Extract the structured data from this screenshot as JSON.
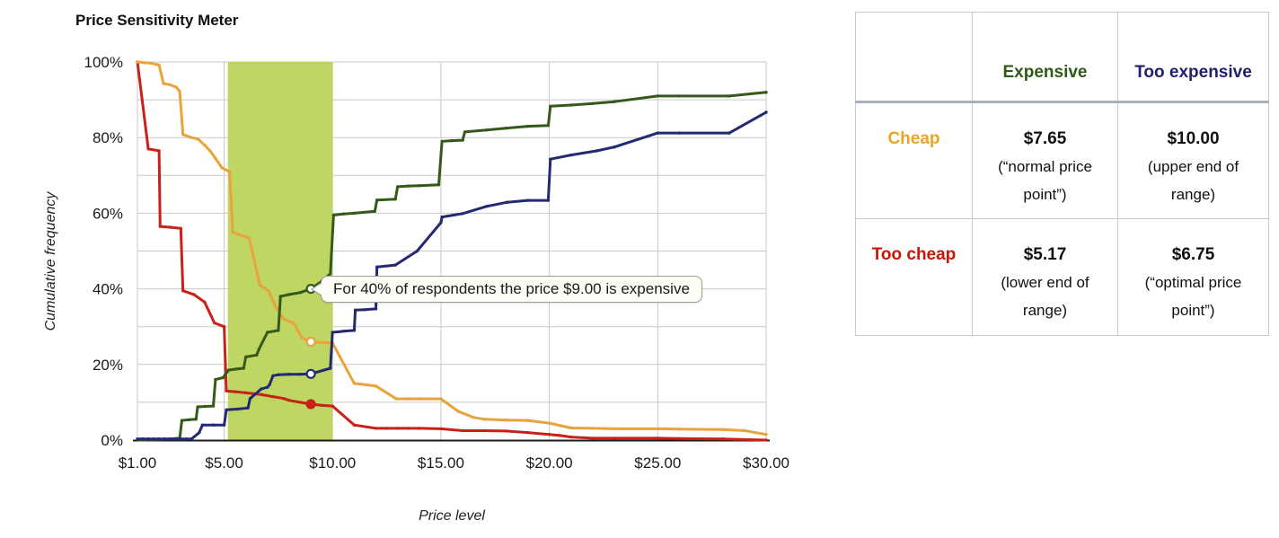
{
  "chart_data": {
    "type": "line",
    "title": "Price Sensitivity Meter",
    "xlabel": "Price level",
    "ylabel": "Cumulative frequency",
    "xlim": [
      1,
      30
    ],
    "ylim": [
      0,
      100
    ],
    "grid": {
      "horizontal_step_pct": 10,
      "vertical_at_ticks": true,
      "color": "#c9c9c9"
    },
    "x_ticks": [
      {
        "value": 1,
        "label": "$1.00"
      },
      {
        "value": 5,
        "label": "$5.00"
      },
      {
        "value": 10,
        "label": "$10.00"
      },
      {
        "value": 15,
        "label": "$15.00"
      },
      {
        "value": 20,
        "label": "$20.00"
      },
      {
        "value": 25,
        "label": "$25.00"
      },
      {
        "value": 30,
        "label": "$30.00"
      }
    ],
    "y_ticks": [
      {
        "value": 100,
        "label": "100%"
      },
      {
        "value": 80,
        "label": "80%"
      },
      {
        "value": 60,
        "label": "60%"
      },
      {
        "value": 40,
        "label": "40%"
      },
      {
        "value": 20,
        "label": "20%"
      },
      {
        "value": 0,
        "label": "0%"
      }
    ],
    "highlight_band": {
      "from": 5.17,
      "to": 10.0,
      "color": "#bed763"
    },
    "annotation": {
      "text": "For 40% of respondents the price $9.00 is expensive",
      "price": 9.0,
      "value_pct": 40,
      "series": "Expensive"
    },
    "series": [
      {
        "name": "Too cheap",
        "color": "#c9211a",
        "highlight": {
          "price": 9,
          "value": 9.5,
          "open": false
        },
        "points": [
          [
            1,
            100
          ],
          [
            1.5,
            77
          ],
          [
            2,
            76.5
          ],
          [
            2.05,
            56.5
          ],
          [
            2.5,
            56.3
          ],
          [
            3,
            56
          ],
          [
            3.1,
            39.5
          ],
          [
            3.6,
            38.5
          ],
          [
            4.1,
            36.5
          ],
          [
            4.55,
            31
          ],
          [
            5,
            30
          ],
          [
            5.1,
            13
          ],
          [
            5.5,
            12.8
          ],
          [
            6,
            12.5
          ],
          [
            6.5,
            12.2
          ],
          [
            6.75,
            12
          ],
          [
            7.25,
            11.5
          ],
          [
            7.75,
            11
          ],
          [
            8,
            10.5
          ],
          [
            8.5,
            10
          ],
          [
            9,
            9.5
          ],
          [
            9.5,
            9.2
          ],
          [
            10,
            9
          ],
          [
            11,
            4
          ],
          [
            12,
            3.1
          ],
          [
            12.5,
            3.1
          ],
          [
            13,
            3.1
          ],
          [
            13.5,
            3.1
          ],
          [
            14,
            3.1
          ],
          [
            15,
            3
          ],
          [
            16,
            2.5
          ],
          [
            17,
            2.5
          ],
          [
            18,
            2.4
          ],
          [
            19,
            2
          ],
          [
            20,
            1.5
          ],
          [
            20.5,
            1.2
          ],
          [
            21,
            0.8
          ],
          [
            22,
            0.5
          ],
          [
            23,
            0.5
          ],
          [
            25,
            0.5
          ],
          [
            26,
            0.4
          ],
          [
            28,
            0.3
          ],
          [
            30,
            0
          ]
        ]
      },
      {
        "name": "Cheap",
        "color": "#e8a33d",
        "highlight": {
          "price": 9,
          "value": 26,
          "open": true
        },
        "points": [
          [
            1,
            100
          ],
          [
            1.3,
            99.8
          ],
          [
            1.6,
            99.7
          ],
          [
            2,
            99.2
          ],
          [
            2.2,
            94.3
          ],
          [
            2.5,
            94
          ],
          [
            2.8,
            93.3
          ],
          [
            2.95,
            92.2
          ],
          [
            3.1,
            80.8
          ],
          [
            3.5,
            80
          ],
          [
            3.8,
            79.6
          ],
          [
            4.1,
            78
          ],
          [
            4.35,
            76.5
          ],
          [
            4.6,
            74.5
          ],
          [
            4.9,
            72
          ],
          [
            5.25,
            71
          ],
          [
            5.4,
            55
          ],
          [
            5.75,
            54.2
          ],
          [
            6.15,
            53.5
          ],
          [
            6.65,
            41
          ],
          [
            7.05,
            39.5
          ],
          [
            7.4,
            35
          ],
          [
            7.75,
            32
          ],
          [
            8.2,
            31
          ],
          [
            8.6,
            27
          ],
          [
            9,
            26
          ],
          [
            9.5,
            25.8
          ],
          [
            10,
            25.7
          ],
          [
            11,
            15
          ],
          [
            12,
            14.3
          ],
          [
            12.95,
            10.9
          ],
          [
            13.5,
            10.9
          ],
          [
            14,
            10.9
          ],
          [
            15,
            10.9
          ],
          [
            15.8,
            7.6
          ],
          [
            16.5,
            6
          ],
          [
            17,
            5.5
          ],
          [
            18,
            5.3
          ],
          [
            19,
            5.2
          ],
          [
            20,
            4.5
          ],
          [
            21,
            3.2
          ],
          [
            22,
            3.1
          ],
          [
            23,
            3
          ],
          [
            25,
            3
          ],
          [
            26,
            2.9
          ],
          [
            28,
            2.8
          ],
          [
            29,
            2.5
          ],
          [
            30,
            1.5
          ]
        ]
      },
      {
        "name": "Expensive",
        "color": "#35591b",
        "highlight": {
          "price": 9,
          "value": 40,
          "open": true
        },
        "points": [
          [
            1,
            0
          ],
          [
            1.5,
            0
          ],
          [
            2,
            0.2
          ],
          [
            2.5,
            0.3
          ],
          [
            2.95,
            0.5
          ],
          [
            3.05,
            5.2
          ],
          [
            3.4,
            5.4
          ],
          [
            3.7,
            5.5
          ],
          [
            3.78,
            8.8
          ],
          [
            4.1,
            8.9
          ],
          [
            4.5,
            9
          ],
          [
            4.6,
            16
          ],
          [
            4.95,
            16.5
          ],
          [
            5.2,
            18.5
          ],
          [
            5.55,
            18.8
          ],
          [
            5.9,
            19
          ],
          [
            6,
            22
          ],
          [
            6.5,
            22.5
          ],
          [
            6.6,
            24
          ],
          [
            7,
            28.5
          ],
          [
            7.5,
            29
          ],
          [
            7.6,
            38
          ],
          [
            8,
            38.5
          ],
          [
            8.5,
            39
          ],
          [
            9,
            40
          ],
          [
            9.5,
            42
          ],
          [
            9.9,
            44
          ],
          [
            10.05,
            59.5
          ],
          [
            10.5,
            59.8
          ],
          [
            11,
            60
          ],
          [
            11.95,
            60.5
          ],
          [
            12.05,
            63.5
          ],
          [
            12.9,
            63.7
          ],
          [
            13,
            67
          ],
          [
            13.5,
            67.2
          ],
          [
            14,
            67.3
          ],
          [
            14.9,
            67.5
          ],
          [
            15.05,
            79
          ],
          [
            15.5,
            79.2
          ],
          [
            16,
            79.3
          ],
          [
            16.1,
            81.5
          ],
          [
            17.1,
            82
          ],
          [
            18,
            82.5
          ],
          [
            19,
            83
          ],
          [
            19.95,
            83.2
          ],
          [
            20.05,
            88.3
          ],
          [
            21,
            88.6
          ],
          [
            22,
            89
          ],
          [
            23,
            89.5
          ],
          [
            25,
            91
          ],
          [
            26,
            91
          ],
          [
            28.3,
            91
          ],
          [
            30,
            92
          ]
        ]
      },
      {
        "name": "Too expensive",
        "color": "#232a72",
        "highlight": {
          "price": 9,
          "value": 17.5,
          "open": true
        },
        "points": [
          [
            1,
            0.3
          ],
          [
            1.25,
            0.3
          ],
          [
            1.5,
            0.3
          ],
          [
            1.75,
            0.3
          ],
          [
            2,
            0.3
          ],
          [
            2.25,
            0.3
          ],
          [
            2.5,
            0.3
          ],
          [
            2.75,
            0.3
          ],
          [
            3,
            0.3
          ],
          [
            3.25,
            0.3
          ],
          [
            3.5,
            0.3
          ],
          [
            3.85,
            2
          ],
          [
            4,
            4
          ],
          [
            4.5,
            4
          ],
          [
            5,
            4
          ],
          [
            5.1,
            8
          ],
          [
            5.6,
            8.2
          ],
          [
            6.1,
            8.5
          ],
          [
            6.2,
            11
          ],
          [
            6.7,
            13.5
          ],
          [
            7,
            14
          ],
          [
            7.1,
            14.7
          ],
          [
            7.25,
            17
          ],
          [
            7.5,
            17.3
          ],
          [
            8,
            17.4
          ],
          [
            8.5,
            17.4
          ],
          [
            9,
            17.5
          ],
          [
            9.9,
            19
          ],
          [
            10,
            28.5
          ],
          [
            10.5,
            28.8
          ],
          [
            11,
            29
          ],
          [
            11.05,
            34.4
          ],
          [
            11.5,
            34.5
          ],
          [
            12,
            34.7
          ],
          [
            12.05,
            45.8
          ],
          [
            12.9,
            46.3
          ],
          [
            13.9,
            50
          ],
          [
            15,
            57.5
          ],
          [
            15.05,
            59
          ],
          [
            16,
            59.9
          ],
          [
            17.1,
            61.8
          ],
          [
            18.05,
            62.9
          ],
          [
            19,
            63.4
          ],
          [
            19.95,
            63.4
          ],
          [
            20.05,
            74.3
          ],
          [
            21,
            75.4
          ],
          [
            22.2,
            76.5
          ],
          [
            23,
            77.5
          ],
          [
            25,
            81.2
          ],
          [
            26,
            81.2
          ],
          [
            28.3,
            81.2
          ],
          [
            30,
            86.7
          ]
        ]
      }
    ]
  },
  "table": {
    "columns": [
      {
        "label": "",
        "color": "#111111"
      },
      {
        "label": "Expensive",
        "color": "#2d5a16"
      },
      {
        "label": "Too expensive",
        "color": "#1f1f70"
      }
    ],
    "rows": [
      {
        "label": "Cheap",
        "color": "#eaa523",
        "cells": [
          {
            "value": "$7.65",
            "note": "(“normal price point”)"
          },
          {
            "value": "$10.00",
            "note": "(upper end of range)"
          }
        ]
      },
      {
        "label": "Too cheap",
        "color": "#cc1407",
        "cells": [
          {
            "value": "$5.17",
            "note": "(lower end of range)"
          },
          {
            "value": "$6.75",
            "note": "(“optimal price point”)"
          }
        ]
      }
    ]
  }
}
